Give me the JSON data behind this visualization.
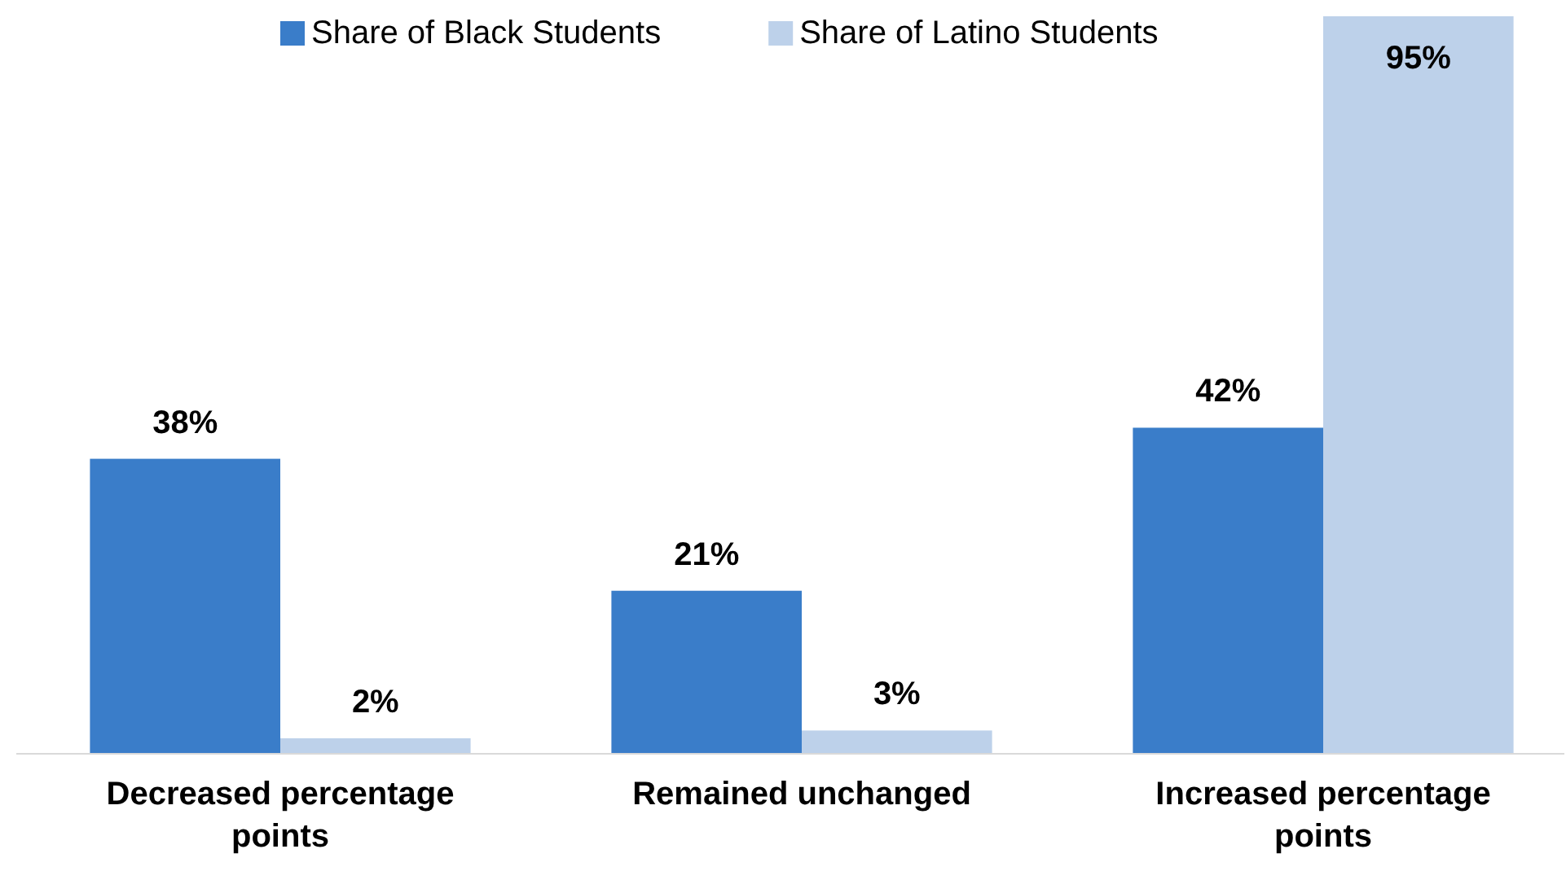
{
  "chart_data": {
    "type": "bar",
    "categories": [
      "Decreased percentage points",
      "Remained unchanged",
      "Increased percentage points"
    ],
    "series": [
      {
        "name": "Share of Black Students",
        "color": "#3a7dc9",
        "values": [
          38,
          21,
          42
        ],
        "value_labels": [
          "38%",
          "21%",
          "42%"
        ]
      },
      {
        "name": "Share of Latino Students",
        "color": "#bdd1ea",
        "values": [
          2,
          3,
          95
        ],
        "value_labels": [
          "2%",
          "3%",
          "95%"
        ]
      }
    ],
    "ylim": [
      0,
      95
    ],
    "tick_labels": "x",
    "legend": "top"
  }
}
